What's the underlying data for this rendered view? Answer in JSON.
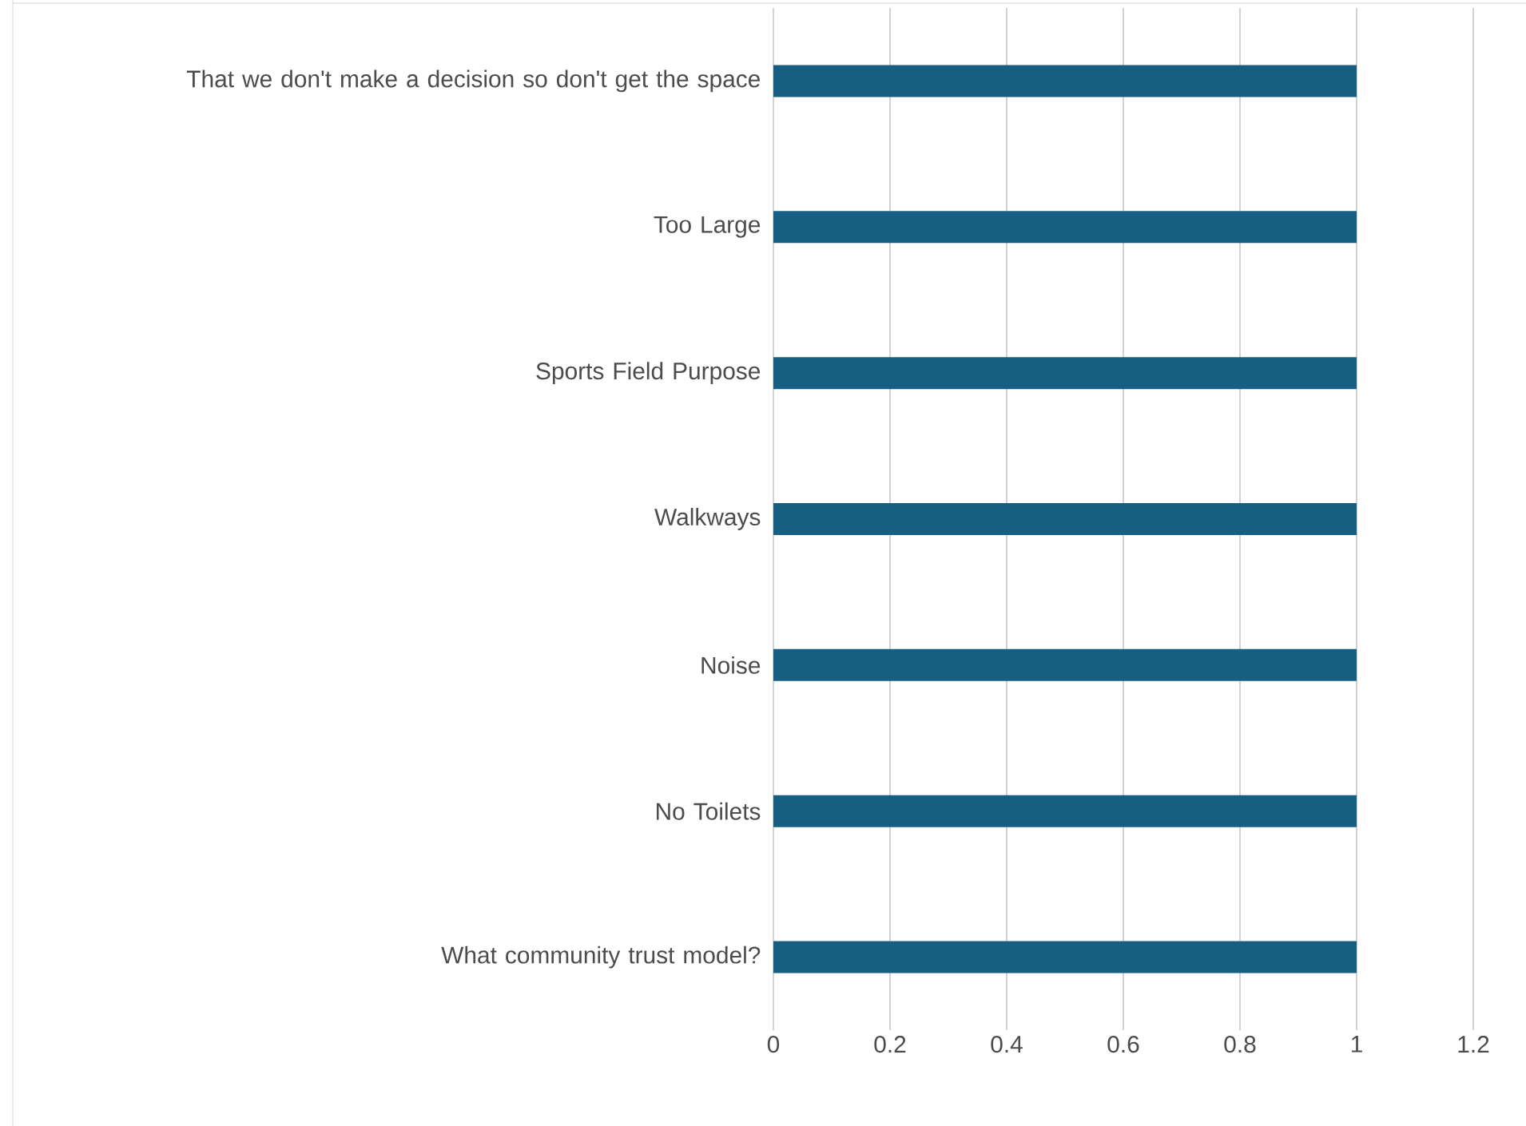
{
  "chart_data": {
    "type": "bar",
    "orientation": "horizontal",
    "categories": [
      "That we don't make a decision so don't get the space",
      "Too Large",
      "Sports Field Purpose",
      "Walkways",
      "Noise",
      "No Toilets",
      "What community trust model?"
    ],
    "values": [
      1,
      1,
      1,
      1,
      1,
      1,
      1
    ],
    "color": "#175f82",
    "xlim": [
      0,
      1.2
    ],
    "xticks": [
      0,
      0.2,
      0.4,
      0.6,
      0.8,
      1,
      1.2
    ],
    "grid": "x"
  }
}
